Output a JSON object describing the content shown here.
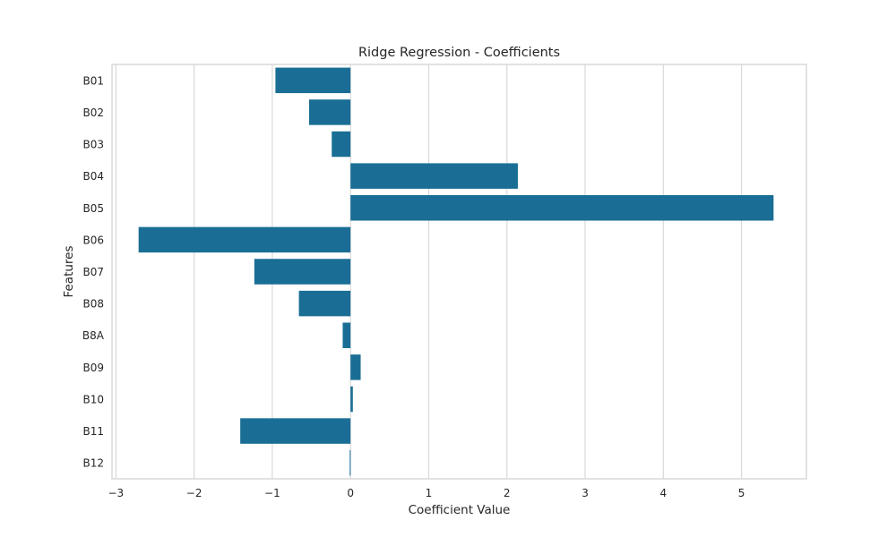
{
  "chart_data": {
    "type": "bar",
    "orientation": "horizontal",
    "title": "Ridge Regression - Coefficients",
    "xlabel": "Coefficient Value",
    "ylabel": "Features",
    "categories": [
      "B01",
      "B02",
      "B03",
      "B04",
      "B05",
      "B06",
      "B07",
      "B08",
      "B8A",
      "B09",
      "B10",
      "B11",
      "B12"
    ],
    "values": [
      -0.96,
      -0.53,
      -0.24,
      2.14,
      5.41,
      -2.71,
      -1.23,
      -0.66,
      -0.1,
      0.13,
      0.03,
      -1.41,
      -0.01
    ],
    "xlim": [
      -3.05,
      5.83
    ],
    "xticks": [
      -3,
      -2,
      -1,
      0,
      1,
      2,
      3,
      4,
      5
    ],
    "xtick_labels": [
      "−3",
      "−2",
      "−1",
      "0",
      "1",
      "2",
      "3",
      "4",
      "5"
    ],
    "bar_color": "#1a6e95",
    "grid": "vertical",
    "legend": "none"
  }
}
